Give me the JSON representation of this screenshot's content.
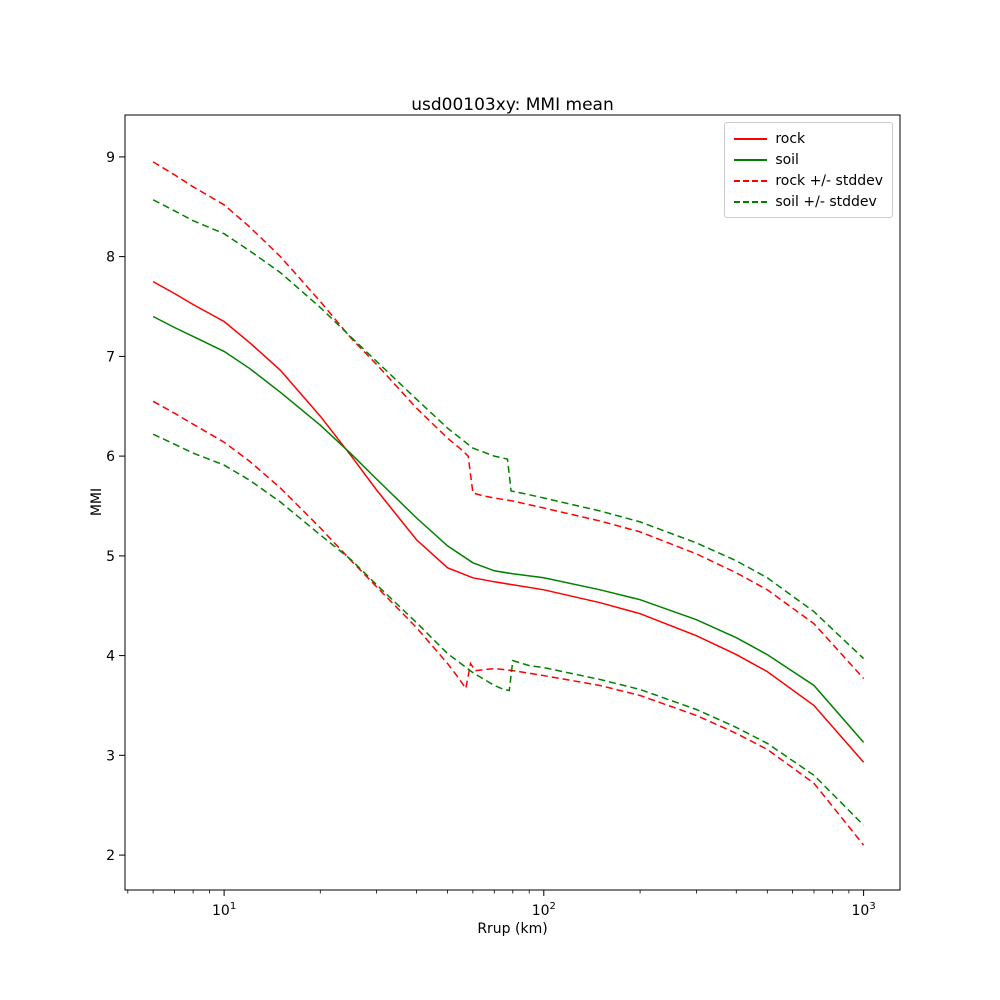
{
  "chart_data": {
    "type": "line",
    "title": "usd00103xy: MMI mean",
    "xlabel": "Rrup (km)",
    "ylabel": "MMI",
    "xscale": "log",
    "xlim": [
      4.9,
      1300
    ],
    "ylim": [
      1.65,
      9.42
    ],
    "xticks": [
      10,
      100,
      1000
    ],
    "yticks": [
      2,
      3,
      4,
      5,
      6,
      7,
      8,
      9
    ],
    "grid": false,
    "legend_position": "upper right",
    "series": [
      {
        "name": "rock",
        "color": "#ff0000",
        "linestyle": "solid",
        "linewidth": 1.5,
        "lines": [
          {
            "x": [
              6,
              7,
              8,
              10,
              12,
              15,
              20,
              25,
              30,
              40,
              50,
              60,
              70,
              80,
              100,
              150,
              200,
              300,
              400,
              500,
              700,
              1000
            ],
            "y": [
              7.75,
              7.63,
              7.52,
              7.35,
              7.14,
              6.86,
              6.4,
              6.0,
              5.66,
              5.16,
              4.88,
              4.78,
              4.74,
              4.71,
              4.66,
              4.53,
              4.42,
              4.2,
              4.01,
              3.84,
              3.5,
              2.93
            ]
          }
        ]
      },
      {
        "name": "soil",
        "color": "#008000",
        "linestyle": "solid",
        "linewidth": 1.5,
        "lines": [
          {
            "x": [
              6,
              7,
              8,
              10,
              12,
              15,
              20,
              25,
              30,
              40,
              50,
              60,
              70,
              80,
              100,
              150,
              200,
              300,
              400,
              500,
              700,
              1000
            ],
            "y": [
              7.4,
              7.29,
              7.2,
              7.05,
              6.88,
              6.64,
              6.31,
              6.02,
              5.77,
              5.38,
              5.1,
              4.93,
              4.85,
              4.82,
              4.78,
              4.66,
              4.56,
              4.36,
              4.18,
              4.01,
              3.7,
              3.13
            ]
          }
        ]
      },
      {
        "name": "rock +/- stddev",
        "color": "#ff0000",
        "linestyle": "dashed",
        "linewidth": 1.5,
        "lines": [
          {
            "x": [
              6,
              7,
              8,
              10,
              12,
              15,
              20,
              25,
              30,
              40,
              50,
              55,
              58,
              60,
              65,
              70,
              80,
              100,
              150,
              200,
              300,
              400,
              500,
              700,
              1000
            ],
            "y": [
              8.95,
              8.82,
              8.7,
              8.52,
              8.3,
              8.0,
              7.55,
              7.18,
              6.92,
              6.48,
              6.18,
              6.07,
              6.0,
              5.63,
              5.6,
              5.58,
              5.55,
              5.48,
              5.35,
              5.24,
              5.02,
              4.83,
              4.66,
              4.32,
              3.77
            ]
          },
          {
            "x": [
              6,
              7,
              8,
              10,
              12,
              15,
              20,
              25,
              30,
              40,
              50,
              54,
              57,
              59,
              61,
              70,
              80,
              100,
              150,
              200,
              300,
              400,
              500,
              700,
              1000
            ],
            "y": [
              6.55,
              6.43,
              6.32,
              6.14,
              5.95,
              5.68,
              5.28,
              4.95,
              4.69,
              4.28,
              3.92,
              3.78,
              3.67,
              3.92,
              3.85,
              3.87,
              3.85,
              3.8,
              3.7,
              3.6,
              3.4,
              3.22,
              3.06,
              2.72,
              2.1
            ]
          }
        ]
      },
      {
        "name": "soil +/- stddev",
        "color": "#008000",
        "linestyle": "dashed",
        "linewidth": 1.5,
        "lines": [
          {
            "x": [
              6,
              7,
              8,
              10,
              12,
              15,
              20,
              25,
              30,
              40,
              50,
              60,
              70,
              77,
              79,
              85,
              100,
              150,
              200,
              300,
              400,
              500,
              700,
              1000
            ],
            "y": [
              8.57,
              8.46,
              8.36,
              8.23,
              8.06,
              7.84,
              7.49,
              7.19,
              6.95,
              6.57,
              6.28,
              6.08,
              6.0,
              5.97,
              5.65,
              5.63,
              5.58,
              5.45,
              5.34,
              5.13,
              4.95,
              4.78,
              4.44,
              3.97
            ]
          },
          {
            "x": [
              6,
              7,
              8,
              10,
              12,
              15,
              20,
              25,
              30,
              40,
              50,
              60,
              70,
              75,
              78,
              80,
              90,
              100,
              150,
              200,
              300,
              400,
              500,
              700,
              1000
            ],
            "y": [
              6.22,
              6.12,
              6.03,
              5.91,
              5.76,
              5.54,
              5.21,
              4.96,
              4.71,
              4.33,
              4.02,
              3.83,
              3.7,
              3.66,
              3.65,
              3.95,
              3.9,
              3.88,
              3.76,
              3.66,
              3.46,
              3.28,
              3.12,
              2.8,
              2.3
            ]
          }
        ]
      }
    ]
  }
}
